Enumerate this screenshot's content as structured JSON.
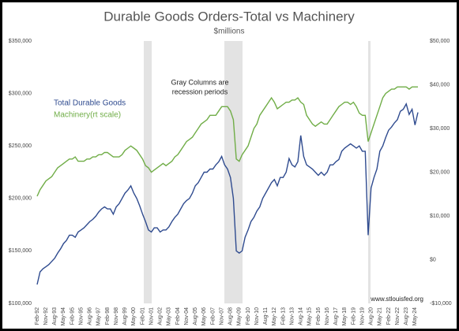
{
  "chart_data": {
    "type": "line",
    "title": "Durable Goods Orders-Total vs Machinery",
    "subtitle": "$millions",
    "annotation": [
      "Gray Columns are",
      "recession periods"
    ],
    "source": "www.stlouisfed.org",
    "grid": false,
    "legend": "upper left",
    "categories": [
      "Feb-92",
      null,
      null,
      "Nov-92",
      null,
      null,
      "Aug-93",
      null,
      null,
      "May-94",
      null,
      null,
      "Feb-95",
      null,
      null,
      "Nov-95",
      null,
      null,
      "Aug-96",
      null,
      null,
      "May-97",
      null,
      null,
      "Feb-98",
      null,
      null,
      "Nov-98",
      null,
      null,
      "Aug-99",
      null,
      null,
      "May-00",
      null,
      null,
      "Feb-01",
      null,
      null,
      "Nov-01",
      null,
      null,
      "Aug-02",
      null,
      null,
      "May-03",
      null,
      null,
      "Feb-04",
      null,
      null,
      "Nov-04",
      null,
      null,
      "Aug-05",
      null,
      null,
      "May-06",
      null,
      null,
      "Feb-07",
      null,
      null,
      "Nov-07",
      null,
      null,
      "Aug-08",
      null,
      null,
      "May-09",
      null,
      null,
      "Feb-10",
      null,
      null,
      "Nov-10",
      null,
      null,
      "Aug-11",
      null,
      null,
      "May-12",
      null,
      null,
      "Feb-13",
      null,
      null,
      "Nov-13",
      null,
      null,
      "Aug-14",
      null,
      null,
      "May-15",
      null,
      null,
      "Feb-16",
      null,
      null,
      "Nov-16",
      null,
      null,
      "Aug-17",
      null,
      null,
      "May-18",
      null,
      null,
      "Feb-19",
      null,
      null,
      "Nov-19",
      null,
      null,
      "Aug-20",
      null,
      null,
      "May-21",
      null,
      null,
      "Feb-22",
      null,
      null,
      "Nov-22",
      null,
      null,
      "Aug-23",
      null,
      null,
      "May-24",
      null
    ],
    "ylim": [
      100000,
      350000
    ],
    "yticks": [
      {
        "value": 100000,
        "label": "$100,000"
      },
      {
        "value": 150000,
        "label": "$150,000"
      },
      {
        "value": 200000,
        "label": "$200,000"
      },
      {
        "value": 250000,
        "label": "$250,000"
      },
      {
        "value": 300000,
        "label": "$300,000"
      },
      {
        "value": 350000,
        "label": "$350,000"
      }
    ],
    "y2lim": [
      -10000,
      50000
    ],
    "y2ticks": [
      {
        "value": -10000,
        "label": "-$10,000"
      },
      {
        "value": 0,
        "label": "$0"
      },
      {
        "value": 10000,
        "label": "$10,000"
      },
      {
        "value": 20000,
        "label": "$20,000"
      },
      {
        "value": 30000,
        "label": "$30,000"
      },
      {
        "value": 40000,
        "label": "$40,000"
      },
      {
        "value": 50000,
        "label": "$50,000"
      }
    ],
    "series": [
      {
        "name": "Total Durable Goods",
        "color": "#2f4b8f",
        "axis": "y",
        "values": [
          118000,
          130000,
          133000,
          135000,
          137000,
          140000,
          143000,
          148000,
          152000,
          157000,
          160000,
          165000,
          165000,
          163000,
          168000,
          170000,
          172000,
          175000,
          178000,
          180000,
          183000,
          187000,
          190000,
          192000,
          190000,
          190000,
          185000,
          192000,
          195000,
          200000,
          205000,
          208000,
          212000,
          205000,
          200000,
          193000,
          185000,
          178000,
          170000,
          168000,
          172000,
          172000,
          168000,
          170000,
          170000,
          173000,
          178000,
          182000,
          185000,
          190000,
          195000,
          198000,
          200000,
          205000,
          212000,
          215000,
          220000,
          225000,
          225000,
          228000,
          228000,
          232000,
          235000,
          240000,
          232000,
          228000,
          220000,
          200000,
          150000,
          148000,
          150000,
          163000,
          170000,
          178000,
          182000,
          188000,
          192000,
          200000,
          205000,
          210000,
          215000,
          218000,
          212000,
          220000,
          220000,
          225000,
          238000,
          232000,
          230000,
          235000,
          260000,
          240000,
          232000,
          230000,
          228000,
          225000,
          222000,
          225000,
          222000,
          225000,
          232000,
          232000,
          235000,
          237000,
          245000,
          248000,
          250000,
          252000,
          250000,
          248000,
          250000,
          245000,
          245000,
          165000,
          210000,
          220000,
          228000,
          245000,
          250000,
          258000,
          265000,
          268000,
          272000,
          275000,
          283000,
          285000,
          290000,
          280000,
          285000,
          270000,
          282000
        ]
      },
      {
        "name": "Machinery(rt scale)",
        "color": "#70ad47",
        "axis": "y2",
        "values": [
          14500,
          16000,
          17000,
          18000,
          18500,
          19000,
          20000,
          21000,
          21500,
          22000,
          22500,
          23000,
          23000,
          23500,
          22500,
          22500,
          22500,
          23000,
          23000,
          23500,
          23500,
          24000,
          24000,
          24500,
          24500,
          24000,
          23500,
          23500,
          23500,
          24000,
          25000,
          25500,
          26000,
          25500,
          25000,
          24000,
          23000,
          21500,
          21000,
          20000,
          20500,
          21000,
          21500,
          22000,
          21500,
          22000,
          22500,
          23500,
          24000,
          25000,
          26000,
          27000,
          27500,
          28000,
          29000,
          30000,
          31000,
          31500,
          32000,
          33000,
          33000,
          33000,
          34000,
          35000,
          35000,
          35000,
          34000,
          32000,
          23000,
          22500,
          24000,
          25000,
          26000,
          28000,
          30000,
          31000,
          33000,
          34000,
          35000,
          36000,
          37000,
          36000,
          34500,
          35000,
          35500,
          36000,
          36000,
          36500,
          36500,
          37000,
          36000,
          35500,
          33000,
          32000,
          31000,
          30500,
          31000,
          31500,
          31000,
          31000,
          32000,
          33000,
          34000,
          35000,
          35500,
          36000,
          36000,
          35500,
          36000,
          35000,
          33500,
          33000,
          33000,
          27000,
          29000,
          31000,
          33000,
          35000,
          37000,
          38000,
          38500,
          39000,
          39000,
          39500,
          39500,
          39500,
          39500,
          39000,
          39500,
          39500,
          39500
        ]
      }
    ]
  }
}
